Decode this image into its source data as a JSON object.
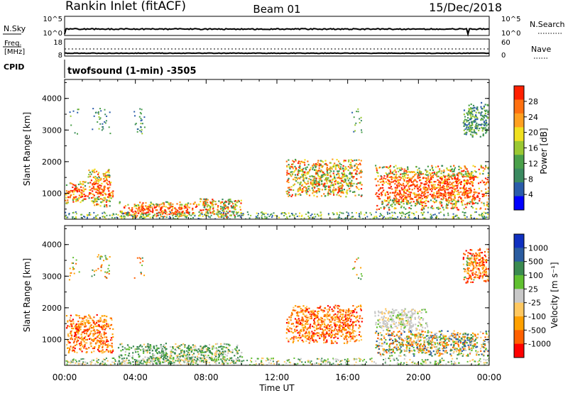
{
  "header": {
    "station": "Rankin Inlet (fitACF)",
    "beam": "Beam 01",
    "date": "15/Dec/2018"
  },
  "noise_panel": {
    "left_label": "N.Sky",
    "left_ticks": [
      "10^5",
      "10^0"
    ],
    "right_ticks": [
      "10^5",
      "10^0"
    ],
    "right_label": "N.Search"
  },
  "freq_panel": {
    "left_label_1": "Freq.",
    "left_label_2": "[MHz]",
    "left_ticks": [
      "18",
      "8"
    ],
    "right_ticks": [
      "60",
      "0"
    ],
    "right_label": "Nave",
    "cpid_label": "CPID"
  },
  "mode_text": "twofsound (1-min) -3505",
  "x_axis": {
    "label": "Time UT",
    "ticks": [
      "00:00",
      "04:00",
      "08:00",
      "12:00",
      "16:00",
      "20:00",
      "00:00"
    ]
  },
  "colors": {
    "power": [
      "#0000ff",
      "#2a5caa",
      "#3b8a60",
      "#4aa04a",
      "#9ac832",
      "#f0e020",
      "#ffa020",
      "#ff7010",
      "#ff2000"
    ],
    "velocity": [
      "#ff0000",
      "#ff6000",
      "#ffa000",
      "#ffc860",
      "#c8c8c8",
      "#60c030",
      "#3a8a50",
      "#2a5ca0",
      "#1030c0"
    ]
  },
  "chart_data": [
    {
      "type": "heatmap",
      "title": "",
      "xlabel": "",
      "ylabel": "Slant Range [km]",
      "yticks": [
        "1000",
        "2000",
        "3000",
        "4000"
      ],
      "ylim": [
        180,
        4600
      ],
      "xlim": [
        0,
        24
      ],
      "colorbar": {
        "label": "Power [dB]",
        "ticks": [
          "28",
          "24",
          "20",
          "16",
          "12",
          "8",
          "4"
        ]
      },
      "patches": [
        {
          "t": [
            0.0,
            1.3
          ],
          "r": [
            700,
            1400
          ],
          "level": "high"
        },
        {
          "t": [
            1.3,
            2.7
          ],
          "r": [
            600,
            1800
          ],
          "level": "high"
        },
        {
          "t": [
            3.0,
            7.5
          ],
          "r": [
            250,
            750
          ],
          "level": "high"
        },
        {
          "t": [
            7.5,
            10.0
          ],
          "r": [
            250,
            850
          ],
          "level": "mid"
        },
        {
          "t": [
            12.5,
            16.8
          ],
          "r": [
            900,
            2100
          ],
          "level": "mid"
        },
        {
          "t": [
            17.5,
            24.0
          ],
          "r": [
            500,
            1900
          ],
          "level": "high"
        },
        {
          "t": [
            22.5,
            24.0
          ],
          "r": [
            2800,
            3900
          ],
          "level": "low"
        }
      ]
    },
    {
      "type": "heatmap",
      "title": "",
      "xlabel": "Time UT",
      "ylabel": "Slant Range [km]",
      "yticks": [
        "1000",
        "2000",
        "3000",
        "4000"
      ],
      "ylim": [
        180,
        4600
      ],
      "xlim": [
        0,
        24
      ],
      "colorbar": {
        "label": "Velocity [m s⁻¹]",
        "ticks": [
          "1000",
          "500",
          "100",
          "25",
          "-25",
          "-100",
          "-500",
          "-1000"
        ]
      },
      "patches": [
        {
          "t": [
            0.0,
            2.7
          ],
          "r": [
            600,
            1800
          ],
          "level": "neg"
        },
        {
          "t": [
            3.0,
            10.0
          ],
          "r": [
            250,
            900
          ],
          "level": "pos"
        },
        {
          "t": [
            12.5,
            16.8
          ],
          "r": [
            900,
            2100
          ],
          "level": "neg"
        },
        {
          "t": [
            17.5,
            20.5
          ],
          "r": [
            1300,
            2000
          ],
          "level": "zero"
        },
        {
          "t": [
            17.5,
            24.0
          ],
          "r": [
            500,
            1300
          ],
          "level": "mixed"
        },
        {
          "t": [
            22.5,
            24.0
          ],
          "r": [
            2800,
            3900
          ],
          "level": "neg"
        }
      ]
    }
  ]
}
